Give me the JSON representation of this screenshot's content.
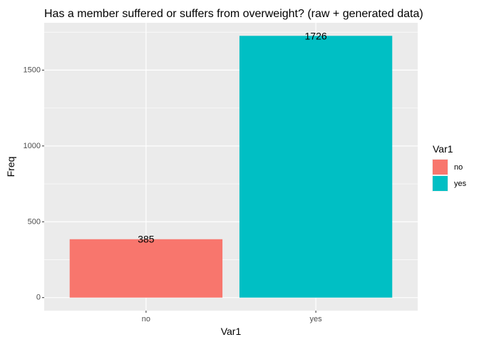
{
  "chart_data": {
    "type": "bar",
    "title": "Has a member suffered or suffers from overweight? (raw + generated data)",
    "xlabel": "Var1",
    "ylabel": "Freq",
    "categories": [
      "no",
      "yes"
    ],
    "values": [
      385,
      1726
    ],
    "data_labels": [
      "385",
      "1726"
    ],
    "yticks": [
      0,
      500,
      1000,
      1500
    ],
    "ylim": [
      -86,
      1812
    ],
    "grid": true,
    "legend": {
      "title": "Var1",
      "placement": "right",
      "entries": [
        "no",
        "yes"
      ]
    },
    "colors": [
      "#f8766d",
      "#00bfc4"
    ],
    "panel_background": "#ebebeb",
    "grid_color": "#ffffff"
  }
}
